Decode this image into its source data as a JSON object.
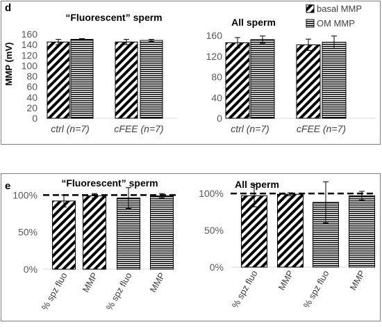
{
  "chart_data": [
    {
      "panel": "d",
      "type": "bar",
      "title": "“Fluorescent” sperm",
      "ylabel": "MMP (mV)",
      "ylim": [
        0,
        160
      ],
      "yticks": [
        "0",
        "20",
        "40",
        "60",
        "80",
        "100",
        "120",
        "140",
        "160"
      ],
      "categories": [
        "ctrl (n=7)",
        "cFEE (n=7)"
      ],
      "series": [
        {
          "name": "basal MMP",
          "pattern": "diagonal",
          "values": [
            145,
            145
          ],
          "errors": [
            5,
            5
          ]
        },
        {
          "name": "OM MMP",
          "pattern": "horizontal",
          "values": [
            150,
            148
          ],
          "errors": [
            1.5,
            2
          ]
        }
      ],
      "legend": "top-right"
    },
    {
      "panel": "d",
      "type": "bar",
      "title": "All sperm",
      "ylim": [
        0,
        160
      ],
      "yticks": [
        "0",
        "40",
        "80",
        "120",
        "160"
      ],
      "categories": [
        "ctrl (n=7)",
        "cFEE (n=7)"
      ],
      "series": [
        {
          "name": "basal MMP",
          "pattern": "diagonal",
          "values": [
            146,
            142
          ],
          "errors": [
            10,
            11
          ]
        },
        {
          "name": "OM MMP",
          "pattern": "horizontal",
          "values": [
            152,
            147
          ],
          "errors": [
            7,
            12
          ]
        }
      ]
    },
    {
      "panel": "e",
      "type": "bar",
      "title": "“Fluorescent” sperm",
      "ylim": [
        0,
        1.2
      ],
      "yticks": [
        "0%",
        "50%",
        "100%"
      ],
      "reference_line": 1.0,
      "categories": [
        "% spz fluo",
        "MMP",
        "% spz fluo",
        "MMP"
      ],
      "patterns": [
        "diagonal",
        "diagonal",
        "horizontal",
        "horizontal"
      ],
      "values": [
        0.92,
        0.99,
        0.96,
        0.99
      ],
      "errors": [
        0.08,
        0.03,
        0.14,
        0.03
      ]
    },
    {
      "panel": "e",
      "type": "bar",
      "title": "All sperm",
      "ylim": [
        0,
        1.2
      ],
      "yticks": [
        "0%",
        "50%",
        "100%"
      ],
      "reference_line": 1.0,
      "categories": [
        "% spz fluo",
        "MMP",
        "% spz fluo",
        "MMP"
      ],
      "patterns": [
        "diagonal",
        "diagonal",
        "horizontal",
        "horizontal"
      ],
      "values": [
        0.97,
        0.99,
        0.88,
        0.97
      ],
      "errors": [
        0.15,
        0.02,
        0.28,
        0.06
      ]
    }
  ],
  "panel_labels": {
    "d": "d",
    "e": "e"
  }
}
